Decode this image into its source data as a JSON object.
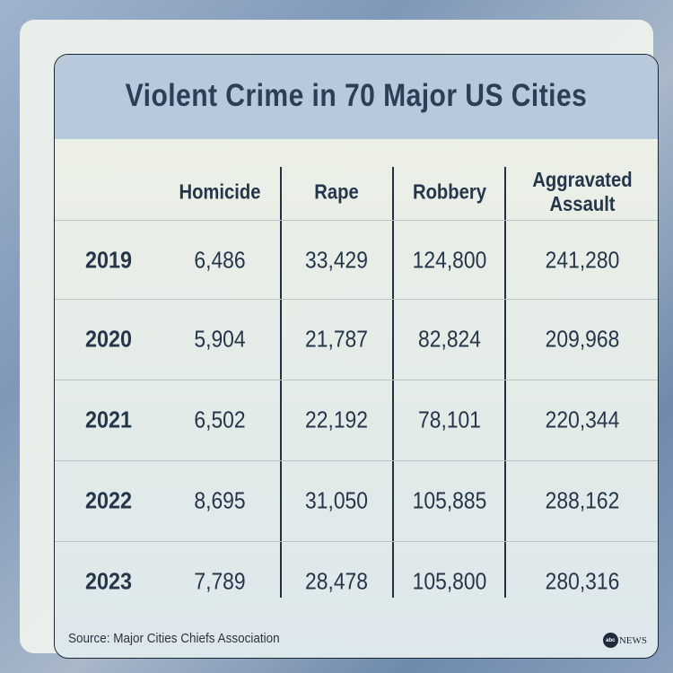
{
  "chart_data": {
    "type": "table",
    "title": "Violent Crime in 70 Major US Cities",
    "columns": [
      "",
      "Homicide",
      "Rape",
      "Robbery",
      "Aggravated Assault"
    ],
    "rows": [
      {
        "year": "2019",
        "values": [
          "6,486",
          "33,429",
          "124,800",
          "241,280"
        ]
      },
      {
        "year": "2020",
        "values": [
          "5,904",
          "21,787",
          "82,824",
          "209,968"
        ]
      },
      {
        "year": "2021",
        "values": [
          "6,502",
          "22,192",
          "78,101",
          "220,344"
        ]
      },
      {
        "year": "2022",
        "values": [
          "8,695",
          "31,050",
          "105,885",
          "288,162"
        ]
      },
      {
        "year": "2023",
        "values": [
          "7,789",
          "28,478",
          "105,800",
          "280,316"
        ]
      }
    ]
  },
  "source": "Source: Major Cities Chiefs Association",
  "logo": {
    "text": "abcNEWS",
    "mark": "abc",
    "word": "NEWS"
  },
  "colors": {
    "header_band": "#b8c9dc",
    "text": "#25364b"
  }
}
